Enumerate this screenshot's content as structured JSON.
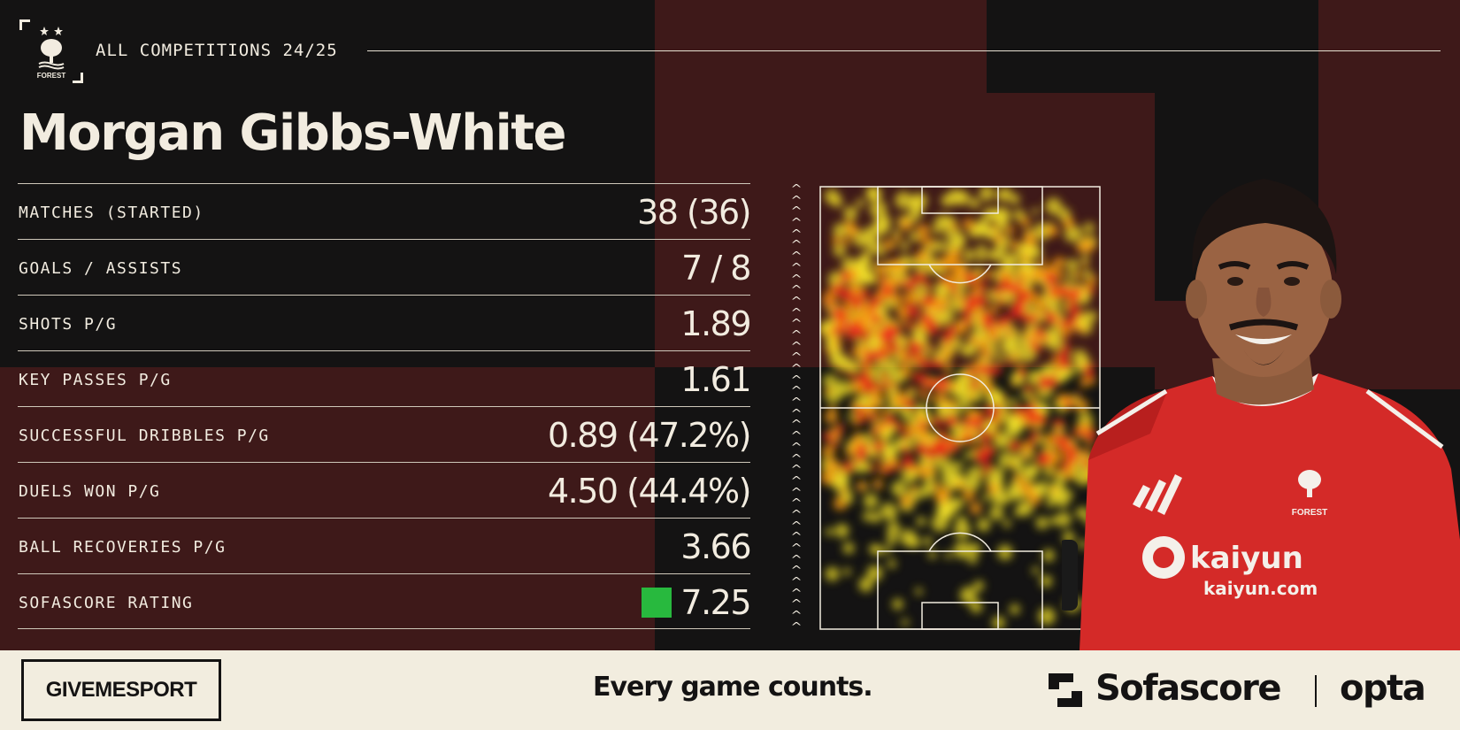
{
  "header": {
    "competition": "ALL COMPETITIONS 24/25",
    "player_name": "Morgan Gibbs-White",
    "club_crest_text": "FOREST"
  },
  "stats": [
    {
      "label": "MATCHES (STARTED)",
      "value": "38 (36)"
    },
    {
      "label": "GOALS / ASSISTS",
      "value": "7 / 8"
    },
    {
      "label": "SHOTS P/G",
      "value": "1.89"
    },
    {
      "label": "KEY PASSES P/G",
      "value": "1.61"
    },
    {
      "label": "SUCCESSFUL DRIBBLES P/G",
      "value": "0.89 (47.2%)"
    },
    {
      "label": "DUELS WON P/G",
      "value": "4.50 (44.4%)"
    },
    {
      "label": "BALL RECOVERIES P/G",
      "value": "3.66"
    },
    {
      "label": "SOFASCORE RATING",
      "value": "7.25",
      "badge_color": "#28b93e"
    }
  ],
  "heatmap": {
    "direction_icon": "up-chevrons-icon",
    "colors": {
      "low": "#f3e22a",
      "mid": "#f59a12",
      "high": "#ef2a1a"
    }
  },
  "player_photo": {
    "shirt_sponsor": "kaiyun",
    "shirt_sponsor_url": "kaiyun.com",
    "shirt_crest_text": "FOREST"
  },
  "footer": {
    "brand": "GIVEMESPORT",
    "tagline": "Every game counts.",
    "partner_1": "Sofascore",
    "partner_2": "opta"
  },
  "colors": {
    "dark": "#141313",
    "maroon": "#3e1919",
    "cream": "#f2ece0",
    "kit_red": "#d42a28"
  }
}
